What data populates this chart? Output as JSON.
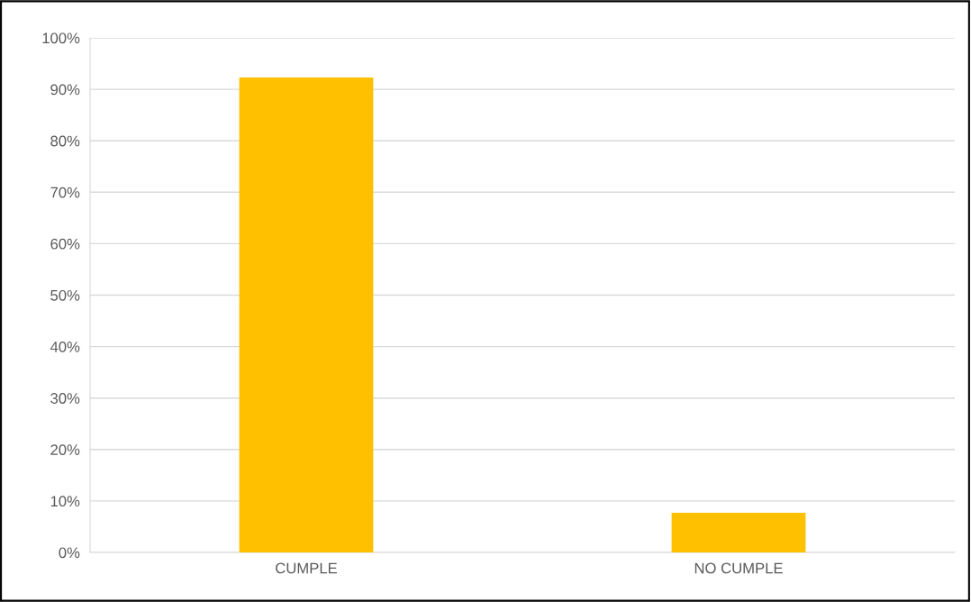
{
  "chart_data": {
    "type": "bar",
    "categories": [
      "CUMPLE",
      "NO CUMPLE"
    ],
    "values": [
      92.3,
      7.7
    ],
    "color": "#ffc000",
    "ylim": [
      0,
      100
    ],
    "yticks": [
      {
        "value": 0,
        "label": "0%"
      },
      {
        "value": 10,
        "label": "10%"
      },
      {
        "value": 20,
        "label": "20%"
      },
      {
        "value": 30,
        "label": "30%"
      },
      {
        "value": 40,
        "label": "40%"
      },
      {
        "value": 50,
        "label": "50%"
      },
      {
        "value": 60,
        "label": "60%"
      },
      {
        "value": 70,
        "label": "70%"
      },
      {
        "value": 80,
        "label": "80%"
      },
      {
        "value": 90,
        "label": "90%"
      },
      {
        "value": 100,
        "label": "100%"
      }
    ],
    "grid": "y"
  }
}
